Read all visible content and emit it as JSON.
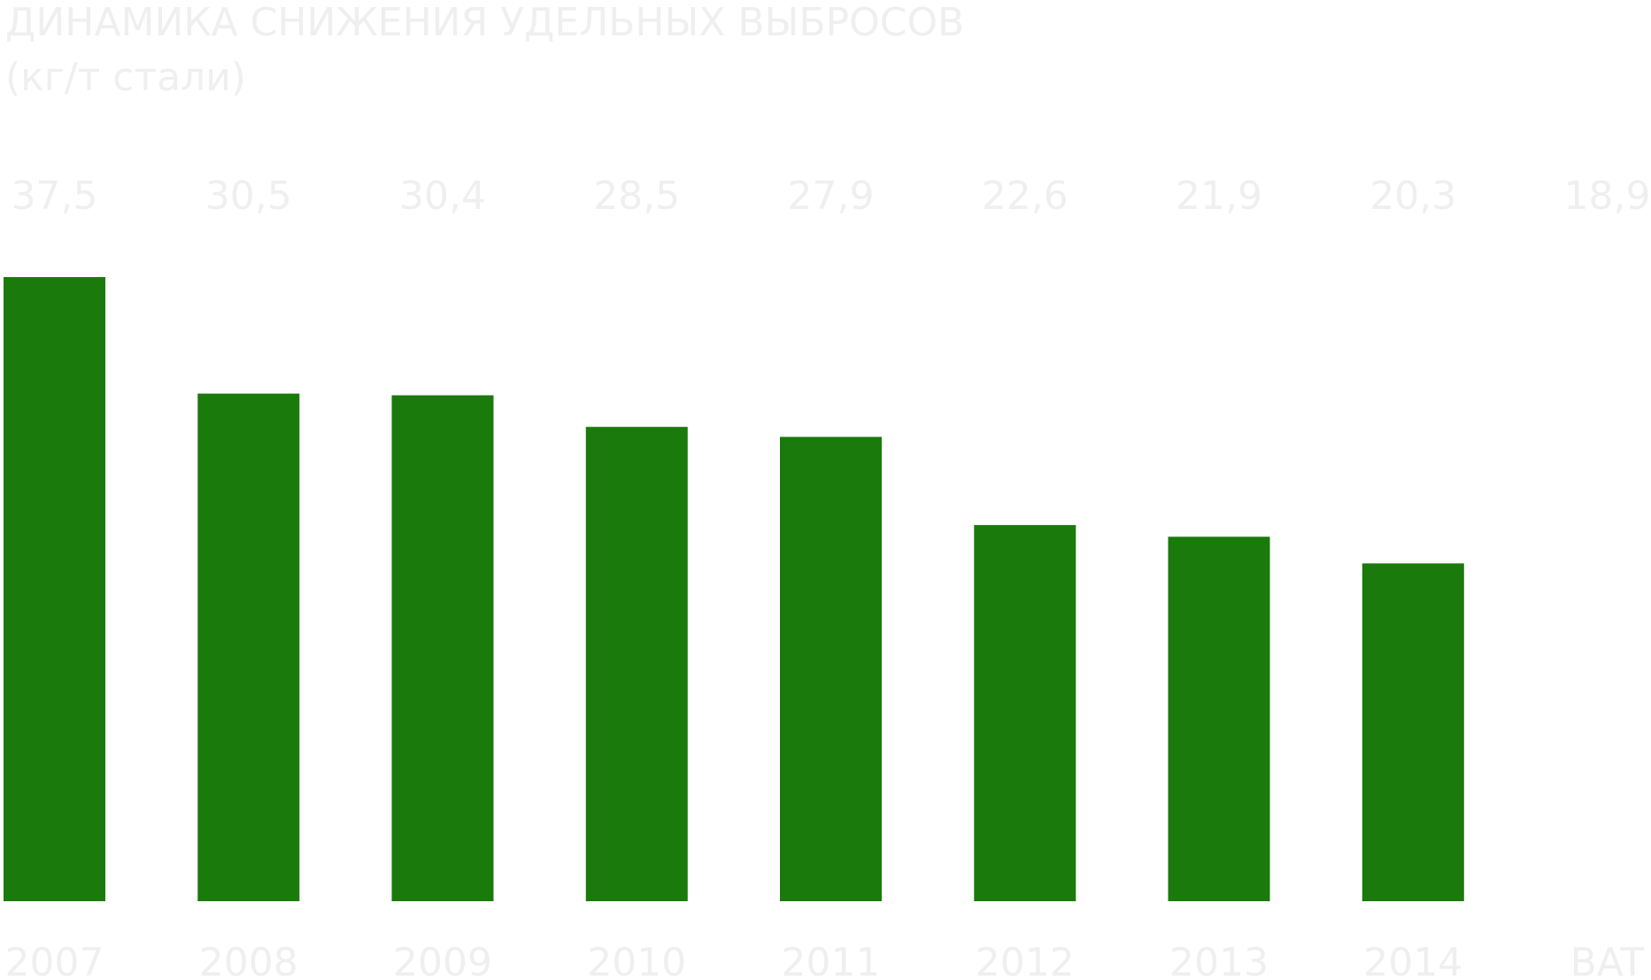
{
  "chart_data": {
    "type": "bar",
    "title": "ДИНАМИКА СНИЖЕНИЯ УДЕЛЬНЫХ ВЫБРОСОВ",
    "subtitle": "(кг/т стали)",
    "categories": [
      "2007",
      "2008",
      "2009",
      "2010",
      "2011",
      "2012",
      "2013",
      "2014",
      "BAT"
    ],
    "values": [
      37.5,
      30.5,
      30.4,
      28.5,
      27.9,
      22.6,
      21.9,
      20.3,
      18.9
    ],
    "value_labels": [
      "37,5",
      "30,5",
      "30,4",
      "28,5",
      "27,9",
      "22,6",
      "21,9",
      "20,3",
      "18,9"
    ],
    "bar_drawn": [
      true,
      true,
      true,
      true,
      true,
      true,
      true,
      true,
      false
    ],
    "bar_color": "#1a7a0c",
    "text_color": "#efefef",
    "background": "#ffffff",
    "xlabel": "",
    "ylabel": "",
    "ylim": [
      0,
      37.5
    ],
    "grid": false,
    "legend": "none"
  }
}
